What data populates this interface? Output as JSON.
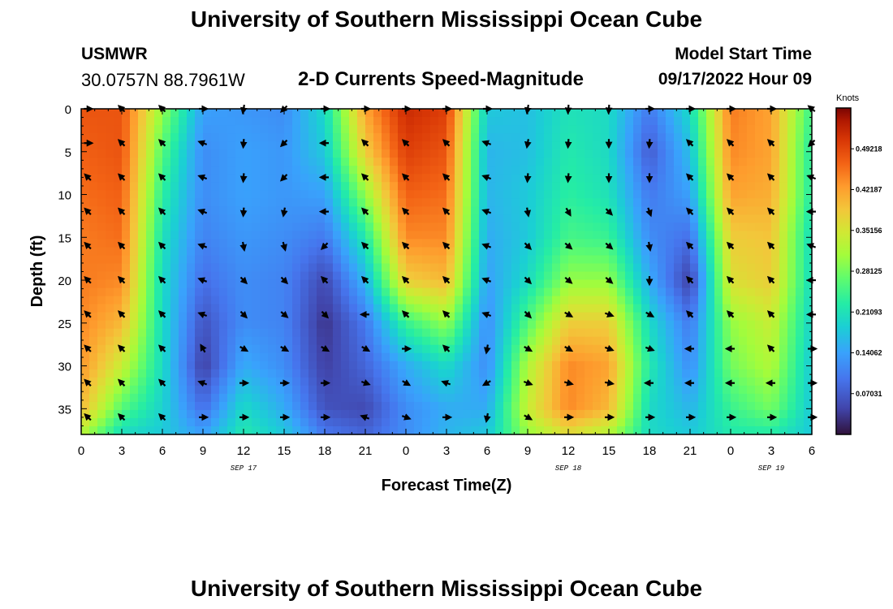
{
  "header": {
    "title": "University of Southern Mississippi Ocean Cube",
    "station": "USMWR",
    "coords": "30.0757N  88.7961W",
    "subtitle": "2-D Currents Speed-Magnitude",
    "model_label": "Model Start Time",
    "model_value": "09/17/2022 Hour 09"
  },
  "footer": {
    "title": "University of Southern Mississippi Ocean Cube"
  },
  "chart_data": {
    "type": "heatmap",
    "title": "2-D Currents Speed-Magnitude",
    "xlabel": "Forecast Time(Z)",
    "ylabel": "Depth (ft)",
    "x_ticks": [
      "0",
      "3",
      "6",
      "9",
      "12",
      "15",
      "18",
      "21",
      "0",
      "3",
      "6",
      "9",
      "12",
      "15",
      "18",
      "21",
      "0",
      "3",
      "6"
    ],
    "day_labels": [
      {
        "label": "SEP 17",
        "hour": 12
      },
      {
        "label": "SEP 18",
        "hour": 36
      },
      {
        "label": "SEP 19",
        "hour": 51
      }
    ],
    "xlim": [
      0,
      54
    ],
    "ylim": [
      0,
      38
    ],
    "y_ticks": [
      0,
      5,
      10,
      15,
      20,
      25,
      30,
      35
    ],
    "colorbar": {
      "unit": "Knots",
      "range": [
        0,
        0.5625
      ],
      "ticks": [
        "0.49218",
        "0.42187",
        "0.35156",
        "0.28125",
        "0.21093",
        "0.14062",
        "0.07031"
      ],
      "tick_values": [
        0.49218,
        0.42187,
        0.35156,
        0.28125,
        0.21093,
        0.14062,
        0.07031
      ]
    },
    "speed_field": {
      "description": "Approximate current speed (knots), rows = depth (ft), columns = forecast hour",
      "hours": [
        0,
        3,
        6,
        9,
        12,
        15,
        18,
        21,
        24,
        27,
        30,
        33,
        36,
        39,
        42,
        45,
        48,
        51,
        54
      ],
      "depths": [
        0,
        5,
        10,
        15,
        20,
        25,
        30,
        35,
        38
      ],
      "values": [
        [
          0.48,
          0.48,
          0.3,
          0.14,
          0.13,
          0.12,
          0.2,
          0.42,
          0.52,
          0.5,
          0.18,
          0.17,
          0.21,
          0.2,
          0.1,
          0.2,
          0.45,
          0.42,
          0.24
        ],
        [
          0.47,
          0.48,
          0.26,
          0.12,
          0.14,
          0.13,
          0.18,
          0.38,
          0.5,
          0.48,
          0.16,
          0.17,
          0.22,
          0.2,
          0.07,
          0.17,
          0.44,
          0.42,
          0.22
        ],
        [
          0.46,
          0.47,
          0.23,
          0.12,
          0.14,
          0.13,
          0.14,
          0.3,
          0.47,
          0.46,
          0.16,
          0.18,
          0.23,
          0.21,
          0.1,
          0.14,
          0.42,
          0.41,
          0.22
        ],
        [
          0.45,
          0.46,
          0.21,
          0.11,
          0.13,
          0.12,
          0.1,
          0.22,
          0.44,
          0.44,
          0.15,
          0.18,
          0.25,
          0.24,
          0.12,
          0.09,
          0.38,
          0.39,
          0.2
        ],
        [
          0.45,
          0.44,
          0.2,
          0.09,
          0.12,
          0.11,
          0.05,
          0.16,
          0.38,
          0.4,
          0.14,
          0.2,
          0.3,
          0.3,
          0.15,
          0.04,
          0.36,
          0.38,
          0.2
        ],
        [
          0.44,
          0.4,
          0.2,
          0.06,
          0.12,
          0.11,
          0.03,
          0.1,
          0.24,
          0.3,
          0.12,
          0.26,
          0.38,
          0.38,
          0.2,
          0.1,
          0.3,
          0.34,
          0.19
        ],
        [
          0.43,
          0.34,
          0.2,
          0.04,
          0.15,
          0.12,
          0.04,
          0.08,
          0.15,
          0.2,
          0.12,
          0.32,
          0.44,
          0.42,
          0.22,
          0.12,
          0.28,
          0.32,
          0.18
        ],
        [
          0.4,
          0.26,
          0.19,
          0.09,
          0.2,
          0.15,
          0.06,
          0.05,
          0.12,
          0.15,
          0.15,
          0.34,
          0.44,
          0.4,
          0.2,
          0.16,
          0.24,
          0.28,
          0.18
        ],
        [
          0.32,
          0.2,
          0.18,
          0.14,
          0.22,
          0.18,
          0.1,
          0.08,
          0.12,
          0.16,
          0.18,
          0.3,
          0.36,
          0.32,
          0.2,
          0.18,
          0.22,
          0.22,
          0.18
        ]
      ]
    },
    "vectors": {
      "description": "Current direction arrows; angle in degrees (0 = right, 90 = down on page)",
      "hours": [
        0.5,
        3,
        6,
        9,
        12,
        15,
        18,
        21,
        24,
        27,
        30,
        33,
        36,
        39,
        42,
        45,
        48,
        51,
        54
      ],
      "depths": [
        0,
        4,
        8,
        12,
        16,
        20,
        24,
        28,
        32,
        36
      ],
      "angles": [
        [
          0,
          225,
          225,
          0,
          100,
          135,
          0,
          0,
          0,
          0,
          0,
          100,
          95,
          95,
          0,
          0,
          0,
          0,
          220
        ],
        [
          0,
          225,
          225,
          200,
          95,
          135,
          180,
          225,
          225,
          225,
          200,
          100,
          95,
          90,
          95,
          225,
          225,
          225,
          135
        ],
        [
          225,
          225,
          225,
          200,
          95,
          135,
          180,
          225,
          225,
          225,
          200,
          95,
          95,
          90,
          90,
          225,
          225,
          225,
          200
        ],
        [
          225,
          225,
          225,
          200,
          95,
          100,
          180,
          225,
          225,
          225,
          200,
          80,
          60,
          45,
          70,
          225,
          225,
          225,
          180
        ],
        [
          225,
          225,
          225,
          200,
          80,
          75,
          135,
          225,
          225,
          225,
          200,
          45,
          40,
          40,
          80,
          225,
          225,
          225,
          200
        ],
        [
          225,
          225,
          225,
          200,
          45,
          45,
          225,
          225,
          225,
          225,
          200,
          45,
          40,
          40,
          90,
          225,
          225,
          225,
          180
        ],
        [
          225,
          225,
          225,
          200,
          45,
          40,
          45,
          180,
          225,
          225,
          200,
          45,
          30,
          20,
          30,
          225,
          225,
          225,
          180
        ],
        [
          225,
          225,
          225,
          240,
          30,
          30,
          30,
          30,
          0,
          225,
          100,
          30,
          30,
          20,
          20,
          180,
          180,
          225,
          0
        ],
        [
          225,
          225,
          225,
          200,
          0,
          0,
          0,
          20,
          30,
          200,
          150,
          20,
          15,
          10,
          180,
          180,
          180,
          180,
          0
        ],
        [
          225,
          225,
          225,
          0,
          0,
          0,
          0,
          200,
          20,
          0,
          100,
          30,
          0,
          0,
          0,
          0,
          0,
          0,
          0
        ]
      ]
    }
  }
}
